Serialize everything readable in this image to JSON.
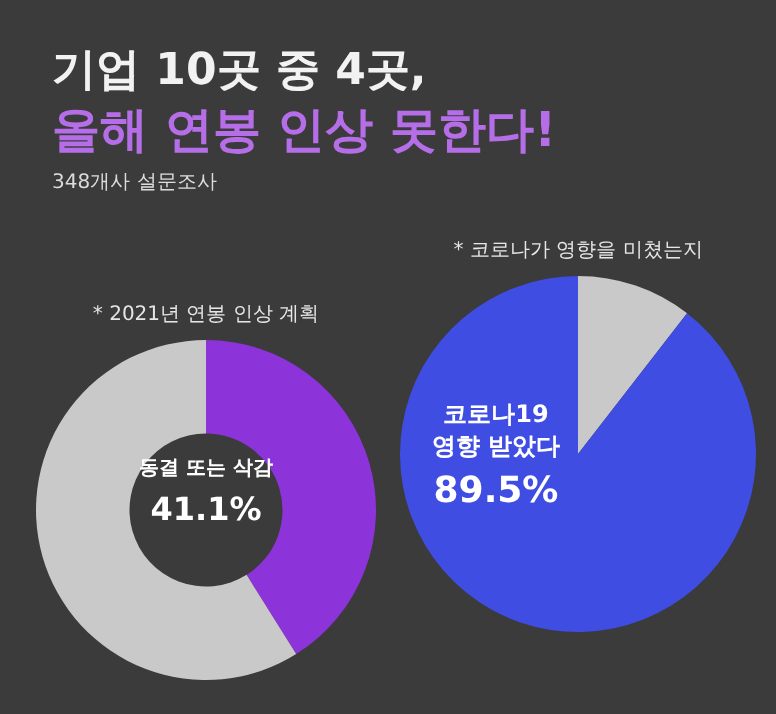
{
  "chart_data": [
    {
      "type": "other",
      "title": "기업 10곳 중 4곳,",
      "subtitle": "올해 연봉 인상 못한다!",
      "annotations": [
        "348개사 설문조사"
      ]
    },
    {
      "type": "donut",
      "title": "* 2021년 연봉 인상 계획",
      "categories": [
        "동결 또는 삭감",
        null
      ],
      "values": [
        41.1,
        58.9
      ],
      "colors": [
        "#8c33d9",
        "#c9c9c9"
      ],
      "value_labels": [
        "41.1%",
        null
      ]
    },
    {
      "type": "pie",
      "title": "* 코로나가 영향을 미쳤는지",
      "categories": [
        null,
        "코로나19 영향 받았다"
      ],
      "values": [
        10.5,
        89.5
      ],
      "colors": [
        "#c9c9c9",
        "#3f4de3"
      ],
      "value_labels": [
        null,
        "89.5%"
      ]
    }
  ]
}
